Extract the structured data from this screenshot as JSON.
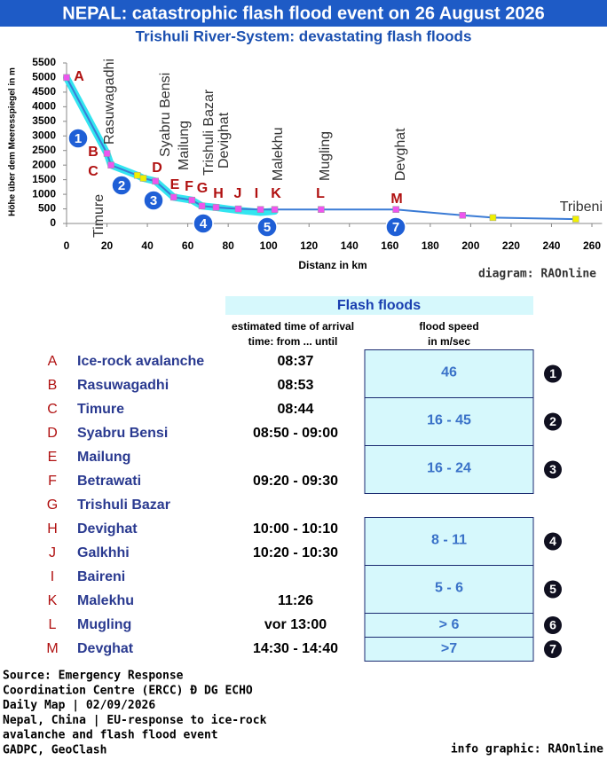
{
  "header": {
    "title": "NEPAL: catastrophic flash flood event on 26 August 2026",
    "subtitle": "Trishuli River-System: devastating flash floods"
  },
  "chart_data": {
    "type": "line",
    "x_label": "Distanz in km",
    "y_label": "Höhe über dem Meeresspiegel in m",
    "credit": "diagram: RAOnline",
    "x": [
      0,
      20,
      22,
      35,
      38,
      44,
      53,
      62,
      67,
      74,
      85,
      96,
      103,
      126,
      163,
      196,
      211,
      252
    ],
    "series": [
      {
        "color": "#33e5f0",
        "values": [
          5000,
          2400,
          2000,
          1650,
          1550,
          1450,
          900,
          800,
          600,
          550,
          450,
          380,
          420,
          null,
          null,
          null,
          null,
          null
        ]
      },
      {
        "color": "#3a7bd5",
        "values": [
          5000,
          2400,
          2000,
          1650,
          1550,
          1450,
          900,
          800,
          600,
          550,
          500,
          480,
          480,
          480,
          480,
          280,
          200,
          150
        ],
        "marker_colors": [
          "#ee55ee",
          "#ee55ee",
          "#ee55ee",
          "#f0f000",
          "#f0f000",
          "#ee55ee",
          "#ee55ee",
          "#ee55ee",
          "#ee55ee",
          "#ee55ee",
          "#ee55ee",
          "#ee55ee",
          "#ee55ee",
          "#ee55ee",
          "#ee55ee",
          "#ee55ee",
          "#f0f000",
          "#f0f000"
        ]
      }
    ],
    "xlim": [
      0,
      265
    ],
    "ylim": [
      0,
      5500
    ],
    "xticks": [
      0,
      20,
      40,
      60,
      80,
      100,
      120,
      140,
      160,
      180,
      200,
      220,
      240,
      260
    ],
    "yticks": [
      0,
      500,
      1000,
      1500,
      2000,
      2500,
      3000,
      3500,
      4000,
      4500,
      5000,
      5500
    ],
    "letters": [
      "A",
      "B",
      "C",
      "D",
      "E",
      "F",
      "G",
      "H",
      "J",
      "I",
      "K",
      "L",
      "M"
    ],
    "places": [
      "Rasuwagadhi",
      "Timure",
      "Syabru Bensi",
      "Mailung",
      "Trishuli Bazar",
      "Devighat",
      "Malekhu",
      "Mugling",
      "Devghat",
      "Tribeni"
    ],
    "markers": [
      "1",
      "2",
      "3",
      "4",
      "5",
      "7"
    ]
  },
  "table": {
    "title": "Flash floods",
    "time_header": [
      "estimated time of arrival",
      "time: from ... until"
    ],
    "speed_header": [
      "flood speed",
      "in m/sec"
    ],
    "rows": [
      [
        "A",
        "Ice-rock avalanche",
        "08:37"
      ],
      [
        "B",
        "Rasuwagadhi",
        "08:53"
      ],
      [
        "C",
        "Timure",
        "08:44"
      ],
      [
        "D",
        "Syabru Bensi",
        "08:50 - 09:00"
      ],
      [
        "E",
        "Mailung",
        null
      ],
      [
        "F",
        "Betrawati",
        "09:20 - 09:30"
      ],
      [
        "G",
        "Trishuli Bazar",
        null
      ],
      [
        "H",
        "Devighat",
        "10:00 - 10:10"
      ],
      [
        "J",
        "Galkhhi",
        "10:20 - 10:30"
      ],
      [
        "I",
        "Baireni",
        null
      ],
      [
        "K",
        "Malekhu",
        "11:26"
      ],
      [
        "L",
        "Mugling",
        "vor 13:00"
      ],
      [
        "M",
        "Devghat",
        "14:30 - 14:40"
      ]
    ],
    "speeds": [
      {
        "value": "46",
        "marker": "1"
      },
      {
        "value": "16 - 45",
        "marker": "2"
      },
      {
        "value": "16 - 24",
        "marker": "3"
      },
      {
        "value": "8 - 11",
        "marker": "4"
      },
      {
        "value": "5 - 6",
        "marker": "5"
      },
      {
        "value": "> 6",
        "marker": "6"
      },
      {
        "value": ">7",
        "marker": "7"
      }
    ]
  },
  "footer": {
    "source": [
      "Source: Emergency Response",
      "Coordination Centre (ERCC) Ð DG ECHO",
      "Daily Map | 02/09/2026",
      "Nepal, China | EU-response to ice-rock",
      "avalanche and flash flood event",
      "GADPC, GeoClash"
    ],
    "credit": "info graphic: RAOnline"
  }
}
